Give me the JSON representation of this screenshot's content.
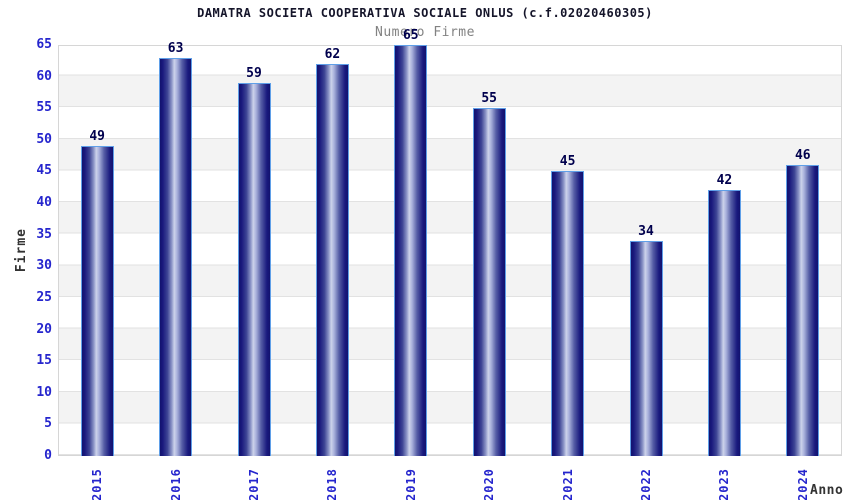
{
  "chart_data": {
    "type": "bar",
    "title": "DAMATRA SOCIETA COOPERATIVA SOCIALE ONLUS (c.f.02020460305)",
    "subtitle": "Numero Firme",
    "xlabel": "Anno",
    "ylabel": "Firme",
    "categories": [
      "2015",
      "2016",
      "2017",
      "2018",
      "2019",
      "2020",
      "2021",
      "2022",
      "2023",
      "2024"
    ],
    "values": [
      49,
      63,
      59,
      62,
      65,
      55,
      45,
      34,
      42,
      46
    ],
    "ylim": [
      0,
      65
    ],
    "ytick_step": 5,
    "ytick_labels": [
      "0",
      "5",
      "10",
      "15",
      "20",
      "25",
      "30",
      "35",
      "40",
      "45",
      "50",
      "55",
      "60",
      "65"
    ],
    "legend": "none",
    "grid": "horizontal-bands",
    "colors": {
      "bar_edge_dark": "#12126e",
      "bar_center_light": "#ccd2ea",
      "bar_border": "#5f9fe8",
      "tick_label": "#2525cd",
      "value_label": "#00004d",
      "title": "#15152a",
      "subtitle": "#828282",
      "axis_label": "#333333",
      "band_fill": "#f3f3f3",
      "gridline": "#e2e2e2",
      "plot_border": "#d6d6d6",
      "background": "#ffffff"
    }
  }
}
